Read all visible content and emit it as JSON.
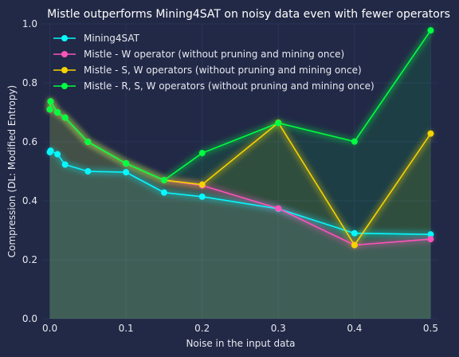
{
  "chart_data": {
    "type": "line",
    "title": "Mistle outperforms Mining4SAT on noisy data even with fewer operators",
    "xlabel": "Noise in the input data",
    "ylabel": "Compression (DL: Modified Entropy)",
    "xlim": [
      -0.01,
      0.51
    ],
    "ylim": [
      0.0,
      1.0
    ],
    "xticks": [
      0.0,
      0.1,
      0.2,
      0.3,
      0.4,
      0.5
    ],
    "xtick_labels": [
      "0.0",
      "0.1",
      "0.2",
      "0.3",
      "0.4",
      "0.5"
    ],
    "yticks": [
      0.0,
      0.2,
      0.4,
      0.6,
      0.8,
      1.0
    ],
    "ytick_labels": [
      "0.0",
      "0.2",
      "0.4",
      "0.6",
      "0.8",
      "1.0"
    ],
    "grid": true,
    "legend_position": "upper-left",
    "x": [
      0.0,
      0.001,
      0.01,
      0.02,
      0.05,
      0.1,
      0.15,
      0.2,
      0.3,
      0.4,
      0.5
    ],
    "series": [
      {
        "name": "Mining4SAT",
        "color": "#08F7FE",
        "values": [
          0.565,
          0.57,
          0.558,
          0.523,
          0.5,
          0.497,
          0.428,
          0.414,
          0.373,
          0.29,
          0.286
        ]
      },
      {
        "name": "Mistle - W operator (without pruning and mining once)",
        "color": "#FE53BB",
        "values": [
          0.71,
          0.737,
          0.7,
          0.682,
          0.6,
          0.527,
          0.47,
          0.452,
          0.374,
          0.25,
          0.27
        ]
      },
      {
        "name": "Mistle - S, W operators (without pruning and mining once)",
        "color": "#F5D300",
        "values": [
          0.71,
          0.737,
          0.7,
          0.682,
          0.6,
          0.527,
          0.47,
          0.455,
          0.665,
          0.25,
          0.628
        ]
      },
      {
        "name": "Mistle - R, S, W operators (without pruning and mining once)",
        "color": "#00ff41",
        "values": [
          0.71,
          0.737,
          0.7,
          0.682,
          0.6,
          0.527,
          0.47,
          0.562,
          0.664,
          0.601,
          0.978
        ]
      }
    ]
  },
  "colors": {
    "background": "#212946",
    "grid": "#2A3459",
    "text": "#e8e8f0"
  }
}
